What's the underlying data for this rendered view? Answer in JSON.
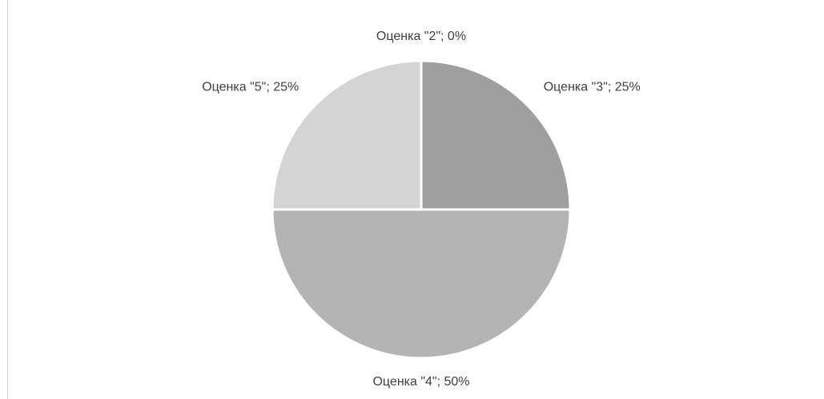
{
  "chart_data": {
    "type": "pie",
    "values": [
      0,
      25,
      50,
      25
    ],
    "value_labels": [
      "Оценка \"2\"; 0%",
      "Оценка \"3\"; 25%",
      "Оценка \"4\"; 50%",
      "Оценка \"5\"; 25%"
    ],
    "colors": [
      "#7f7f7f",
      "#9f9f9f",
      "#b4b4b4",
      "#d4d4d4"
    ]
  }
}
